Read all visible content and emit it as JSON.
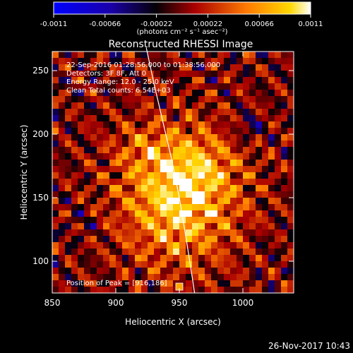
{
  "chart_data": {
    "type": "heatmap",
    "title": "Reconstructed RHESSI Image",
    "xlabel": "Heliocentric X (arcsec)",
    "ylabel": "Heliocentric Y (arcsec)",
    "xlim": [
      850,
      1040
    ],
    "ylim": [
      75,
      265
    ],
    "xticks": [
      "850",
      "900",
      "950",
      "1000"
    ],
    "yticks": [
      "100",
      "150",
      "200",
      "250"
    ],
    "colorbar": {
      "range": [
        -0.0011,
        0.0011
      ],
      "ticks": [
        "-0.0011",
        "-0.00066",
        "-0.00022",
        "0.00022",
        "0.00066",
        "0.0011"
      ],
      "unit_label": "(photons cm⁻² s⁻¹ asec⁻²)"
    },
    "annotations": [
      "22-Sep-2016 01:28:56.000 to 01:38:56.000",
      "Detectors: 3F 8F, Att 0",
      "Energy Range: 12.0 - 25.0 keV",
      "Clean    Total counts: 6.54E+03"
    ],
    "peak": {
      "label": "Position of Peak = [916,186]",
      "x": 950,
      "y": 80
    },
    "limb": [
      [
        924,
        268
      ],
      [
        930,
        240
      ],
      [
        937,
        210
      ],
      [
        944,
        180
      ],
      [
        950,
        150
      ],
      [
        955,
        120
      ],
      [
        959,
        95
      ],
      [
        962,
        75
      ]
    ],
    "blobs": [
      {
        "x": 950,
        "y": 150,
        "sx": 45,
        "sy": 50,
        "a": 0.85
      },
      {
        "x": 965,
        "y": 175,
        "sx": 30,
        "sy": 25,
        "a": 0.25
      },
      {
        "x": 920,
        "y": 190,
        "sx": 22,
        "sy": 18,
        "a": 0.2
      },
      {
        "x": 875,
        "y": 130,
        "sx": 12,
        "sy": 12,
        "a": -0.15
      },
      {
        "x": 1005,
        "y": 205,
        "sx": 10,
        "sy": 10,
        "a": -0.35
      },
      {
        "x": 1020,
        "y": 115,
        "sx": 10,
        "sy": 10,
        "a": -0.1
      }
    ],
    "grid": false
  },
  "footer": {
    "date": "26-Nov-2017 10:43"
  }
}
